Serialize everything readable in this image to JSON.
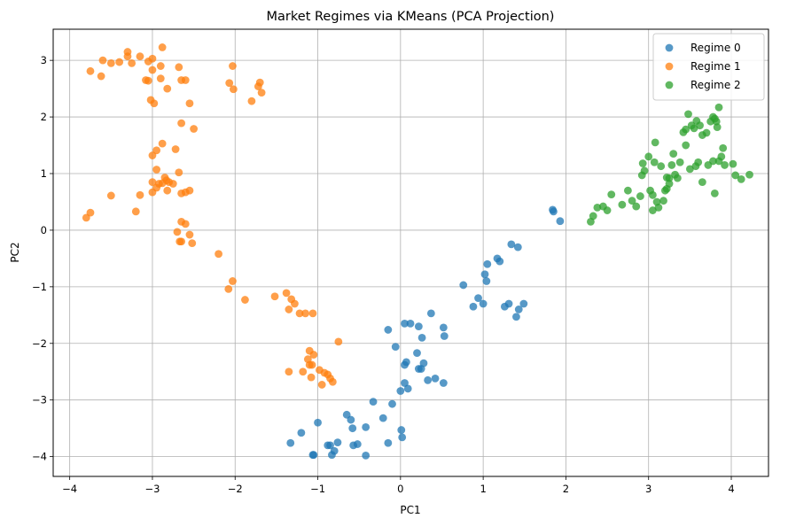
{
  "chart_data": {
    "type": "scatter",
    "title": "Market Regimes via KMeans (PCA Projection)",
    "xlabel": "PC1",
    "ylabel": "PC2",
    "xlim": [
      -4.2,
      4.45
    ],
    "ylim": [
      -4.35,
      3.55
    ],
    "xticks": [
      -4,
      -3,
      -2,
      -1,
      0,
      1,
      2,
      3,
      4
    ],
    "yticks": [
      -4,
      -3,
      -2,
      -1,
      0,
      1,
      2,
      3
    ],
    "grid": true,
    "legend_position": "top-right",
    "series": [
      {
        "name": "Regime 0",
        "color": "#1f77b4",
        "points": [
          [
            -1.33,
            -3.76
          ],
          [
            -1.2,
            -3.58
          ],
          [
            -1.06,
            -3.97
          ],
          [
            -1.05,
            -3.97
          ],
          [
            -1.0,
            -3.4
          ],
          [
            -0.88,
            -3.8
          ],
          [
            -0.85,
            -3.8
          ],
          [
            -0.83,
            -3.97
          ],
          [
            -0.8,
            -3.9
          ],
          [
            -0.76,
            -3.75
          ],
          [
            -0.65,
            -3.26
          ],
          [
            -0.6,
            -3.35
          ],
          [
            -0.58,
            -3.5
          ],
          [
            -0.57,
            -3.8
          ],
          [
            -0.52,
            -3.78
          ],
          [
            -0.42,
            -3.48
          ],
          [
            -0.42,
            -3.98
          ],
          [
            -0.33,
            -3.03
          ],
          [
            -0.21,
            -3.32
          ],
          [
            -0.15,
            -3.76
          ],
          [
            -0.1,
            -3.07
          ],
          [
            -0.15,
            -1.76
          ],
          [
            -0.06,
            -2.06
          ],
          [
            0.0,
            -2.84
          ],
          [
            0.02,
            -3.66
          ],
          [
            0.01,
            -3.53
          ],
          [
            0.05,
            -2.38
          ],
          [
            0.07,
            -2.33
          ],
          [
            0.05,
            -2.7
          ],
          [
            0.09,
            -2.8
          ],
          [
            0.05,
            -1.65
          ],
          [
            0.12,
            -1.65
          ],
          [
            0.22,
            -1.7
          ],
          [
            0.2,
            -2.17
          ],
          [
            0.25,
            -2.45
          ],
          [
            0.22,
            -2.45
          ],
          [
            0.28,
            -2.35
          ],
          [
            0.26,
            -1.9
          ],
          [
            0.33,
            -2.65
          ],
          [
            0.37,
            -1.47
          ],
          [
            0.42,
            -2.62
          ],
          [
            0.52,
            -1.72
          ],
          [
            0.53,
            -1.87
          ],
          [
            0.52,
            -2.7
          ],
          [
            0.76,
            -0.97
          ],
          [
            0.88,
            -1.35
          ],
          [
            0.94,
            -1.2
          ],
          [
            1.0,
            -1.3
          ],
          [
            1.02,
            -0.78
          ],
          [
            1.04,
            -0.9
          ],
          [
            1.05,
            -0.6
          ],
          [
            1.2,
            -0.55
          ],
          [
            1.17,
            -0.5
          ],
          [
            1.26,
            -1.35
          ],
          [
            1.31,
            -1.3
          ],
          [
            1.34,
            -0.25
          ],
          [
            1.4,
            -1.53
          ],
          [
            1.43,
            -1.4
          ],
          [
            1.42,
            -0.3
          ],
          [
            1.49,
            -1.3
          ],
          [
            1.84,
            0.36
          ],
          [
            1.85,
            0.33
          ],
          [
            1.93,
            0.16
          ]
        ]
      },
      {
        "name": "Regime 1",
        "color": "#ff7f0e",
        "points": [
          [
            -3.6,
            3.0
          ],
          [
            -3.5,
            2.95
          ],
          [
            -3.4,
            2.97
          ],
          [
            -3.3,
            3.07
          ],
          [
            -3.25,
            2.95
          ],
          [
            -3.15,
            3.07
          ],
          [
            -3.05,
            2.98
          ],
          [
            -3.0,
            3.03
          ],
          [
            -2.88,
            3.23
          ],
          [
            -2.9,
            2.9
          ],
          [
            -3.0,
            2.83
          ],
          [
            -3.05,
            2.64
          ],
          [
            -3.08,
            2.65
          ],
          [
            -2.9,
            2.68
          ],
          [
            -2.82,
            2.5
          ],
          [
            -2.68,
            2.88
          ],
          [
            -2.65,
            2.65
          ],
          [
            -2.55,
            2.24
          ],
          [
            -2.98,
            2.24
          ],
          [
            -3.02,
            2.3
          ],
          [
            -3.75,
            2.81
          ],
          [
            -3.62,
            2.72
          ],
          [
            -3.3,
            3.15
          ],
          [
            -2.6,
            2.65
          ],
          [
            -2.65,
            1.89
          ],
          [
            -2.5,
            1.79
          ],
          [
            -2.03,
            2.9
          ],
          [
            -2.07,
            2.6
          ],
          [
            -2.02,
            2.49
          ],
          [
            -1.7,
            2.61
          ],
          [
            -1.72,
            2.54
          ],
          [
            -1.68,
            2.43
          ],
          [
            -1.8,
            2.28
          ],
          [
            -2.95,
            1.41
          ],
          [
            -2.88,
            1.53
          ],
          [
            -3.0,
            1.32
          ],
          [
            -2.72,
            1.43
          ],
          [
            -2.95,
            1.07
          ],
          [
            -2.85,
            0.93
          ],
          [
            -2.83,
            0.88
          ],
          [
            -2.8,
            0.85
          ],
          [
            -2.75,
            0.82
          ],
          [
            -2.92,
            0.82
          ],
          [
            -2.88,
            0.83
          ],
          [
            -2.68,
            1.02
          ],
          [
            -3.0,
            0.85
          ],
          [
            -2.95,
            0.75
          ],
          [
            -2.82,
            0.7
          ],
          [
            -3.0,
            0.67
          ],
          [
            -2.65,
            0.65
          ],
          [
            -2.6,
            0.67
          ],
          [
            -2.55,
            0.7
          ],
          [
            -3.15,
            0.62
          ],
          [
            -3.5,
            0.61
          ],
          [
            -3.8,
            0.22
          ],
          [
            -3.75,
            0.31
          ],
          [
            -3.2,
            0.33
          ],
          [
            -2.65,
            0.15
          ],
          [
            -2.6,
            0.11
          ],
          [
            -2.7,
            -0.03
          ],
          [
            -2.55,
            -0.08
          ],
          [
            -2.65,
            -0.2
          ],
          [
            -2.67,
            -0.2
          ],
          [
            -2.52,
            -0.23
          ],
          [
            -2.2,
            -0.42
          ],
          [
            -2.08,
            -1.04
          ],
          [
            -2.03,
            -0.9
          ],
          [
            -1.88,
            -1.23
          ],
          [
            -1.52,
            -1.17
          ],
          [
            -1.38,
            -1.11
          ],
          [
            -1.32,
            -1.22
          ],
          [
            -1.28,
            -1.3
          ],
          [
            -1.22,
            -1.47
          ],
          [
            -1.15,
            -1.47
          ],
          [
            -1.06,
            -1.47
          ],
          [
            -1.35,
            -1.4
          ],
          [
            -1.1,
            -2.13
          ],
          [
            -1.05,
            -2.2
          ],
          [
            -1.07,
            -2.38
          ],
          [
            -1.12,
            -2.28
          ],
          [
            -1.1,
            -2.38
          ],
          [
            -0.98,
            -2.47
          ],
          [
            -0.92,
            -2.52
          ],
          [
            -0.88,
            -2.55
          ],
          [
            -0.85,
            -2.62
          ],
          [
            -0.82,
            -2.68
          ],
          [
            -0.75,
            -1.97
          ],
          [
            -0.95,
            -2.73
          ],
          [
            -1.35,
            -2.5
          ],
          [
            -1.18,
            -2.5
          ],
          [
            -1.08,
            -2.6
          ]
        ]
      },
      {
        "name": "Regime 2",
        "color": "#2ca02c",
        "points": [
          [
            2.3,
            0.15
          ],
          [
            2.33,
            0.25
          ],
          [
            2.38,
            0.4
          ],
          [
            2.45,
            0.42
          ],
          [
            2.5,
            0.35
          ],
          [
            2.55,
            0.63
          ],
          [
            2.68,
            0.45
          ],
          [
            2.75,
            0.7
          ],
          [
            2.8,
            0.52
          ],
          [
            2.85,
            0.42
          ],
          [
            2.9,
            0.6
          ],
          [
            2.92,
            0.97
          ],
          [
            2.93,
            1.18
          ],
          [
            2.95,
            1.05
          ],
          [
            3.0,
            1.3
          ],
          [
            3.02,
            0.7
          ],
          [
            3.05,
            0.35
          ],
          [
            3.05,
            0.62
          ],
          [
            3.07,
            1.2
          ],
          [
            3.08,
            1.55
          ],
          [
            3.1,
            0.5
          ],
          [
            3.12,
            0.4
          ],
          [
            3.15,
            1.13
          ],
          [
            3.18,
            0.52
          ],
          [
            3.2,
            0.7
          ],
          [
            3.22,
            0.73
          ],
          [
            3.25,
            0.92
          ],
          [
            3.22,
            0.93
          ],
          [
            3.25,
            0.82
          ],
          [
            3.28,
            1.15
          ],
          [
            3.3,
            1.35
          ],
          [
            3.32,
            0.98
          ],
          [
            3.35,
            0.92
          ],
          [
            3.38,
            1.2
          ],
          [
            3.42,
            1.73
          ],
          [
            3.45,
            1.78
          ],
          [
            3.48,
            2.05
          ],
          [
            3.5,
            1.08
          ],
          [
            3.52,
            1.85
          ],
          [
            3.55,
            1.8
          ],
          [
            3.57,
            1.13
          ],
          [
            3.58,
            1.93
          ],
          [
            3.6,
            1.2
          ],
          [
            3.62,
            1.85
          ],
          [
            3.65,
            1.68
          ],
          [
            3.7,
            1.72
          ],
          [
            3.72,
            1.15
          ],
          [
            3.75,
            1.92
          ],
          [
            3.78,
            2.0
          ],
          [
            3.78,
            1.22
          ],
          [
            3.8,
            1.97
          ],
          [
            3.8,
            0.65
          ],
          [
            3.82,
            1.92
          ],
          [
            3.83,
            1.82
          ],
          [
            3.85,
            2.17
          ],
          [
            3.85,
            1.22
          ],
          [
            3.88,
            1.3
          ],
          [
            3.9,
            1.45
          ],
          [
            3.92,
            1.15
          ],
          [
            4.02,
            1.17
          ],
          [
            4.05,
            0.97
          ],
          [
            4.12,
            0.9
          ],
          [
            4.22,
            0.98
          ],
          [
            3.65,
            0.85
          ],
          [
            3.45,
            1.5
          ]
        ]
      }
    ]
  }
}
